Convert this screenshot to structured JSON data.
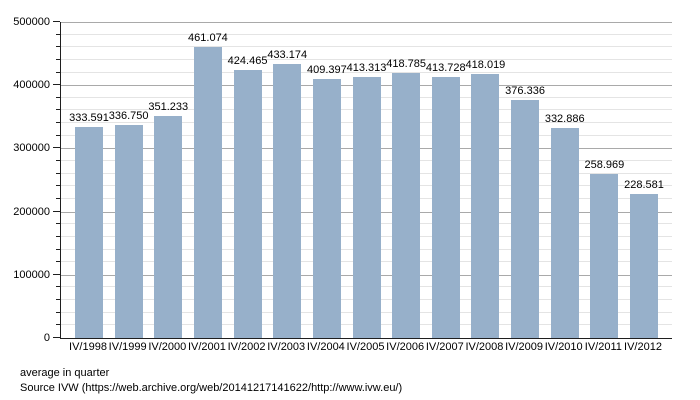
{
  "chart_data": {
    "type": "bar",
    "title": "",
    "xlabel": "",
    "ylabel": "",
    "categories": [
      "IV/1998",
      "IV/1999",
      "IV/2000",
      "IV/2001",
      "IV/2002",
      "IV/2003",
      "IV/2004",
      "IV/2005",
      "IV/2006",
      "IV/2007",
      "IV/2008",
      "IV/2009",
      "IV/2010",
      "IV/2011",
      "IV/2012"
    ],
    "values": [
      333591,
      336750,
      351233,
      461074,
      424465,
      433174,
      409397,
      413313,
      418785,
      413728,
      418019,
      376336,
      332886,
      258969,
      228581
    ],
    "bar_labels": [
      "333.591",
      "336.750",
      "351.233",
      "461.074",
      "424.465",
      "433.174",
      "409.397",
      "413.313",
      "418.785",
      "413.728",
      "418.019",
      "376.336",
      "332.886",
      "258.969",
      "228.581"
    ],
    "ylim": [
      0,
      500000
    ],
    "y_major_step": 100000,
    "y_minor_step": 20000,
    "y_ticks": [
      {
        "value": 0,
        "label": "0"
      },
      {
        "value": 100000,
        "label": "100000"
      },
      {
        "value": 200000,
        "label": "200000"
      },
      {
        "value": 300000,
        "label": "300000"
      },
      {
        "value": 400000,
        "label": "400000"
      },
      {
        "value": 500000,
        "label": "500000"
      }
    ],
    "grid": true,
    "legend": "none",
    "bar_color": "#97b0ca",
    "grid_major_color": "#a9a9a9",
    "grid_minor_color": "#e4e4e4"
  },
  "footer": {
    "line1": "average in quarter",
    "line2": "Source IVW (https://web.archive.org/web/20141217141622/http://www.ivw.eu/)"
  }
}
